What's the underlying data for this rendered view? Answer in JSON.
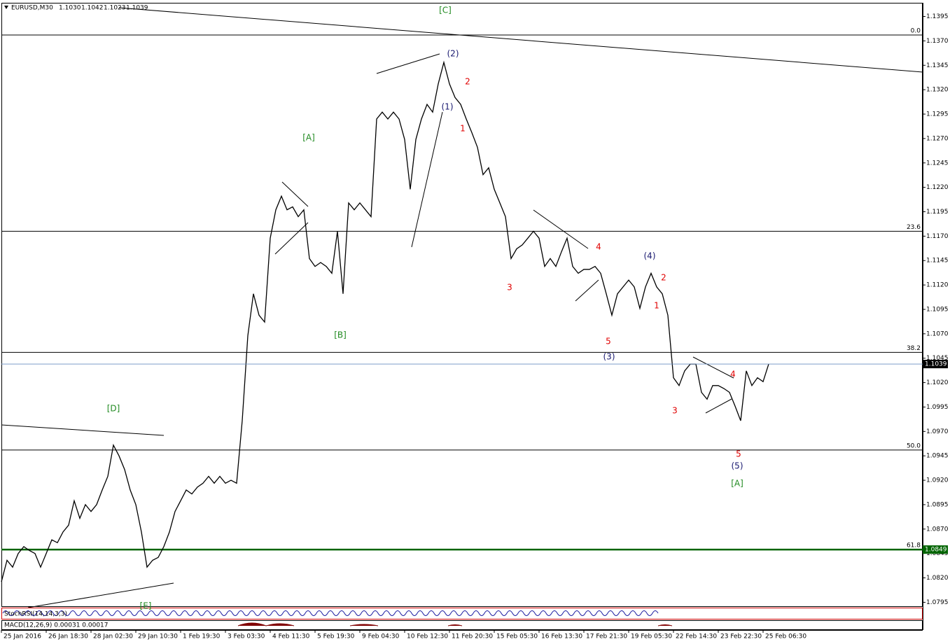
{
  "chart_data": {
    "type": "line",
    "title": "EURUSD,M30",
    "ohlc": [
      "1.1030",
      "1.1042",
      "1.1023",
      "1.1039"
    ],
    "color": "#000000",
    "categories": [
      "25 Jan 2016",
      null,
      null,
      null,
      null,
      null,
      null,
      null,
      "26 Jan 18:30",
      null,
      null,
      null,
      null,
      null,
      null,
      null,
      "28 Jan 02:30",
      null,
      null,
      null,
      null,
      null,
      null,
      null,
      "29 Jan 10:30",
      null,
      null,
      null,
      null,
      null,
      null,
      null,
      "1 Feb 19:30",
      null,
      null,
      null,
      null,
      null,
      null,
      null,
      "3 Feb 03:30",
      null,
      null,
      null,
      null,
      null,
      null,
      null,
      "4 Feb 11:30",
      null,
      null,
      null,
      null,
      null,
      null,
      null,
      "5 Feb 19:30",
      null,
      null,
      null,
      null,
      null,
      null,
      null,
      "9 Feb 04:30",
      null,
      null,
      null,
      null,
      null,
      null,
      null,
      "10 Feb 12:30",
      null,
      null,
      null,
      null,
      null,
      null,
      null,
      "11 Feb 20:30",
      null,
      null,
      null,
      null,
      null,
      null,
      null,
      "15 Feb 05:30",
      null,
      null,
      null,
      null,
      null,
      null,
      null,
      "16 Feb 13:30",
      null,
      null,
      null,
      null,
      null,
      null,
      null,
      "17 Feb 21:30",
      null,
      null,
      null,
      null,
      null,
      null,
      null,
      "19 Feb 05:30",
      null,
      null,
      null,
      null,
      null,
      null,
      null,
      "22 Feb 14:30",
      null,
      null,
      null,
      null,
      null,
      null,
      null,
      "23 Feb 22:30",
      null,
      null,
      null,
      null,
      null,
      null,
      null,
      "25 Feb 06:30",
      null
    ],
    "values": [
      1.0816,
      1.0838,
      1.0831,
      1.0845,
      1.0852,
      1.0848,
      1.0845,
      1.0831,
      1.0845,
      1.0859,
      1.0856,
      1.0867,
      1.0874,
      1.0899,
      1.0881,
      1.0895,
      1.0888,
      1.0895,
      1.091,
      1.0924,
      1.0956,
      1.0945,
      1.0931,
      1.091,
      1.0895,
      1.0867,
      1.0831,
      1.0838,
      1.0841,
      1.0852,
      1.0867,
      1.0888,
      1.0899,
      1.091,
      1.0906,
      1.0913,
      1.0917,
      1.0924,
      1.0917,
      1.0924,
      1.0917,
      1.092,
      1.0917,
      1.0981,
      1.1068,
      1.1111,
      1.1089,
      1.1082,
      1.1168,
      1.1197,
      1.1211,
      1.1197,
      1.12,
      1.119,
      1.1197,
      1.1147,
      1.1139,
      1.1143,
      1.1139,
      1.1132,
      1.1175,
      1.1111,
      1.1204,
      1.1197,
      1.1204,
      1.1197,
      1.119,
      1.129,
      1.1297,
      1.129,
      1.1297,
      1.129,
      1.1269,
      1.1218,
      1.1269,
      1.129,
      1.1305,
      1.1297,
      1.1326,
      1.1348,
      1.1326,
      1.1312,
      1.1305,
      1.129,
      1.1276,
      1.1261,
      1.1233,
      1.124,
      1.1218,
      1.1204,
      1.119,
      1.1147,
      1.1157,
      1.1161,
      1.1168,
      1.1175,
      1.1168,
      1.1139,
      1.1147,
      1.1139,
      1.1154,
      1.1168,
      1.1139,
      1.1132,
      1.1136,
      1.1136,
      1.1139,
      1.1132,
      1.1111,
      1.1089,
      1.1111,
      1.1118,
      1.1125,
      1.1118,
      1.1096,
      1.1118,
      1.1132,
      1.1118,
      1.1111,
      1.1089,
      1.1025,
      1.1017,
      1.1032,
      1.1039,
      1.1039,
      1.101,
      1.1003,
      1.1017,
      1.1017,
      1.1014,
      1.101,
      1.0996,
      1.0981,
      1.1032,
      1.1017,
      1.1025,
      1.1021,
      1.1039
    ],
    "ylim": [
      1.0791,
      1.1409
    ],
    "yticks": [
      1.1395,
      {
        "value": 1.137,
        "label": "1.1370"
      },
      1.1345,
      {
        "value": 1.132,
        "label": "1.1320"
      },
      1.1295,
      {
        "value": 1.127,
        "label": "1.1270"
      },
      1.1245,
      {
        "value": 1.122,
        "label": "1.1220"
      },
      1.1195,
      {
        "value": 1.117,
        "label": "1.1170"
      },
      1.1145,
      {
        "value": 1.112,
        "label": "1.1120"
      },
      1.1095,
      {
        "value": 1.107,
        "label": "1.1070"
      },
      1.1045,
      {
        "value": 1.102,
        "label": "1.1020"
      },
      1.0995,
      {
        "value": 1.097,
        "label": "1.0970"
      },
      1.0945,
      {
        "value": 1.092,
        "label": "1.0920"
      },
      1.0895,
      {
        "value": 1.087,
        "label": "1.0870"
      },
      1.0845,
      {
        "value": 1.082,
        "label": "1.0820"
      },
      1.0795
    ],
    "levels": [
      {
        "label": "0.0",
        "value": 1.1376
      },
      {
        "label": "23.6",
        "value": 1.1175
      },
      {
        "label": "38.2",
        "value": 1.1051
      },
      {
        "label": "50.0",
        "value": 1.0951
      },
      {
        "label": "61.8",
        "value": 1.0849,
        "color": "#006400"
      }
    ],
    "annotations": [
      {
        "text": "[C]",
        "color": "#228b22"
      },
      {
        "text": "[A]",
        "color": "#228b22"
      },
      {
        "text": "[B]",
        "color": "#228b22"
      },
      {
        "text": "[D]",
        "color": "#228b22"
      },
      {
        "text": "[E]",
        "color": "#228b22"
      },
      {
        "text": "(2)",
        "color": "#191970"
      },
      {
        "text": "(1)",
        "color": "#191970"
      },
      {
        "text": "2",
        "color": "#e00000"
      },
      {
        "text": "1",
        "color": "#e00000"
      },
      {
        "text": "3",
        "color": "#e00000"
      },
      {
        "text": "4",
        "color": "#e00000"
      },
      {
        "text": "5",
        "color": "#e00000"
      },
      {
        "text": "(3)",
        "color": "#191970"
      },
      {
        "text": "(4)",
        "color": "#191970"
      },
      {
        "text": "2",
        "color": "#e00000"
      },
      {
        "text": "1",
        "color": "#e00000"
      },
      {
        "text": "3",
        "color": "#e00000"
      },
      {
        "text": "4",
        "color": "#e00000"
      },
      {
        "text": "5",
        "color": "#e00000"
      },
      {
        "text": "(5)",
        "color": "#191970"
      },
      {
        "text": "[A]",
        "color": "#228b22"
      }
    ],
    "indicators": [
      "StochRSI(14,14,3,3)",
      "MACD(12,26,9) 0.00031 0.00017"
    ]
  }
}
